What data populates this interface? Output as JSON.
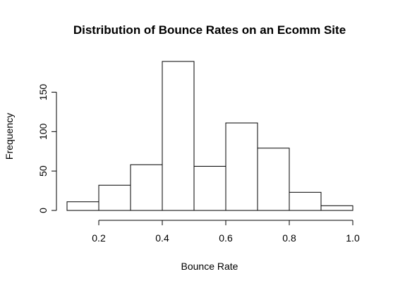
{
  "chart_data": {
    "type": "bar",
    "title": "Distribution of Bounce Rates on an Ecomm Site",
    "xlabel": "Bounce Rate",
    "ylabel": "Frequency",
    "bins": [
      {
        "start": 0.1,
        "end": 0.2,
        "count": 11
      },
      {
        "start": 0.2,
        "end": 0.3,
        "count": 32
      },
      {
        "start": 0.3,
        "end": 0.4,
        "count": 58
      },
      {
        "start": 0.4,
        "end": 0.5,
        "count": 189
      },
      {
        "start": 0.5,
        "end": 0.6,
        "count": 56
      },
      {
        "start": 0.6,
        "end": 0.7,
        "count": 111
      },
      {
        "start": 0.7,
        "end": 0.8,
        "count": 79
      },
      {
        "start": 0.8,
        "end": 0.9,
        "count": 23
      },
      {
        "start": 0.9,
        "end": 1.0,
        "count": 6
      }
    ],
    "xlim": [
      0.1,
      1.0
    ],
    "ylim": [
      0,
      189
    ],
    "x_ticks": [
      {
        "value": 0.2,
        "label": "0.2"
      },
      {
        "value": 0.4,
        "label": "0.4"
      },
      {
        "value": 0.6,
        "label": "0.6"
      },
      {
        "value": 0.8,
        "label": "0.8"
      },
      {
        "value": 1.0,
        "label": "1.0"
      }
    ],
    "y_ticks": [
      {
        "value": 0,
        "label": "0"
      },
      {
        "value": 50,
        "label": "50"
      },
      {
        "value": 100,
        "label": "100"
      },
      {
        "value": 150,
        "label": "150"
      }
    ],
    "grid": false,
    "bar_fill": "#ffffff",
    "bar_stroke": "#000000"
  }
}
